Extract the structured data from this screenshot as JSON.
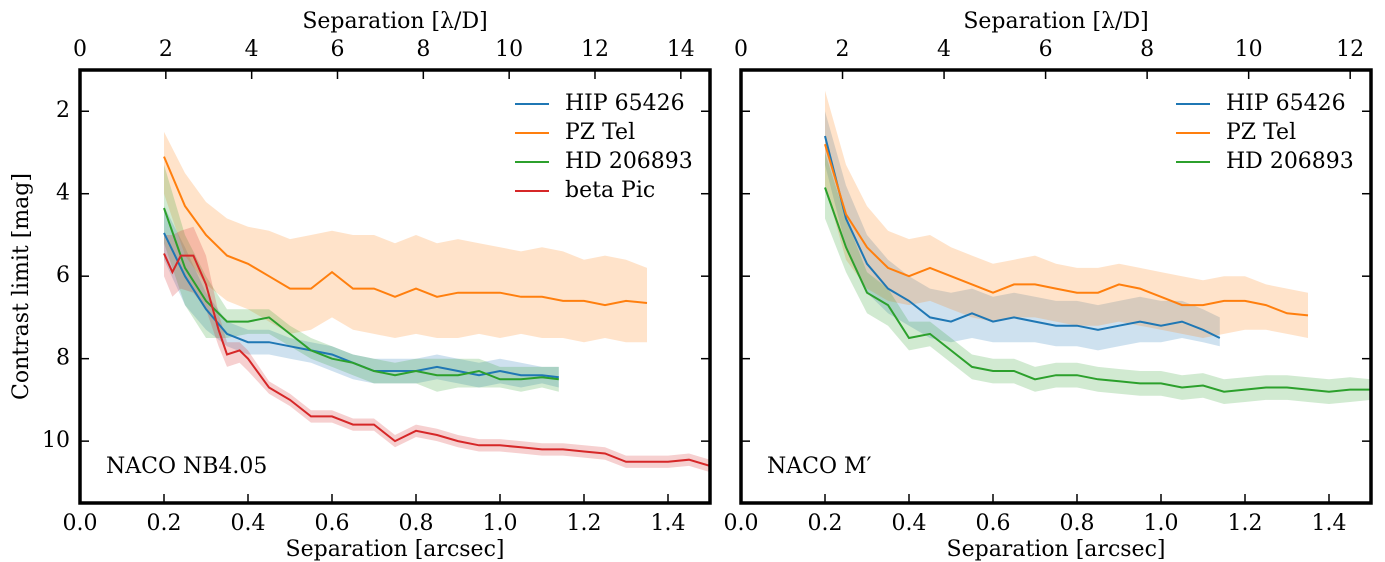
{
  "chart_data": [
    {
      "type": "line",
      "xlabel": "Separation [arcsec]",
      "ylabel": "Contrast limit [mag]",
      "x2label": "Separation [λ/D]",
      "annotation": "NACO NB4.05",
      "xlim": [
        0,
        1.5
      ],
      "xticks": [
        {
          "value": 0,
          "label": "0.0"
        },
        0.2,
        0.4,
        0.6,
        0.8,
        {
          "value": 1,
          "label": "1.0"
        },
        1.2,
        1.4
      ],
      "x2lim": [
        0,
        14.68
      ],
      "x2ticks": [
        0,
        2,
        4,
        6,
        8,
        10,
        12,
        14
      ],
      "ylim": [
        1,
        11.5
      ],
      "y_inverted": true,
      "yticks": [
        2,
        4,
        6,
        8,
        10
      ],
      "ytick_labels": true,
      "legend": "upper right",
      "series": [
        {
          "name": "HIP 65426",
          "color": "#1f77b4",
          "x": [
            0.2,
            0.25,
            0.3,
            0.35,
            0.4,
            0.45,
            0.5,
            0.55,
            0.6,
            0.65,
            0.7,
            0.75,
            0.8,
            0.85,
            0.9,
            0.95,
            1.0,
            1.05,
            1.1,
            1.14
          ],
          "values": [
            4.95,
            6.0,
            6.8,
            7.4,
            7.6,
            7.6,
            7.7,
            7.8,
            7.9,
            8.1,
            8.3,
            8.3,
            8.3,
            8.2,
            8.3,
            8.4,
            8.3,
            8.4,
            8.4,
            8.45
          ],
          "lower": [
            4.3,
            5.3,
            6.4,
            7.1,
            7.3,
            7.3,
            7.5,
            7.6,
            7.7,
            7.9,
            8.0,
            8.0,
            8.0,
            7.9,
            8.0,
            8.1,
            8.0,
            8.1,
            8.2,
            8.2
          ],
          "upper": [
            5.6,
            6.7,
            7.3,
            7.7,
            7.9,
            7.9,
            8.0,
            8.1,
            8.3,
            8.5,
            8.6,
            8.6,
            8.6,
            8.5,
            8.6,
            8.7,
            8.6,
            8.7,
            8.6,
            8.7
          ]
        },
        {
          "name": "PZ Tel",
          "color": "#ff7f0e",
          "x": [
            0.2,
            0.25,
            0.3,
            0.35,
            0.4,
            0.45,
            0.5,
            0.55,
            0.6,
            0.65,
            0.7,
            0.75,
            0.8,
            0.85,
            0.9,
            0.95,
            1.0,
            1.05,
            1.1,
            1.15,
            1.2,
            1.25,
            1.3,
            1.35
          ],
          "values": [
            3.1,
            4.3,
            5.0,
            5.5,
            5.7,
            6.0,
            6.3,
            6.3,
            5.9,
            6.3,
            6.3,
            6.5,
            6.3,
            6.5,
            6.4,
            6.4,
            6.4,
            6.5,
            6.5,
            6.6,
            6.6,
            6.7,
            6.6,
            6.65
          ],
          "lower": [
            2.5,
            3.5,
            4.2,
            4.6,
            4.8,
            4.9,
            5.1,
            5.0,
            4.9,
            5.0,
            5.0,
            5.2,
            5.0,
            5.2,
            5.1,
            5.2,
            5.3,
            5.4,
            5.3,
            5.4,
            5.6,
            5.5,
            5.6,
            5.8
          ],
          "upper": [
            4.0,
            5.5,
            6.2,
            6.6,
            6.8,
            7.1,
            7.4,
            7.3,
            7.0,
            7.3,
            7.4,
            7.5,
            7.4,
            7.5,
            7.5,
            7.4,
            7.5,
            7.4,
            7.5,
            7.5,
            7.6,
            7.5,
            7.6,
            7.6
          ]
        },
        {
          "name": "HD 206893",
          "color": "#2ca02c",
          "x": [
            0.2,
            0.25,
            0.3,
            0.35,
            0.4,
            0.45,
            0.5,
            0.55,
            0.6,
            0.65,
            0.7,
            0.75,
            0.8,
            0.85,
            0.9,
            0.95,
            1.0,
            1.05,
            1.1,
            1.14
          ],
          "values": [
            4.35,
            5.8,
            6.6,
            7.1,
            7.1,
            7.0,
            7.4,
            7.8,
            8.0,
            8.1,
            8.3,
            8.4,
            8.3,
            8.4,
            8.4,
            8.3,
            8.5,
            8.5,
            8.45,
            8.5
          ],
          "lower": [
            3.3,
            5.0,
            6.0,
            6.8,
            6.8,
            6.8,
            7.2,
            7.5,
            7.7,
            7.9,
            8.0,
            8.1,
            8.0,
            8.0,
            8.0,
            8.0,
            8.2,
            8.2,
            8.2,
            8.2
          ],
          "upper": [
            5.2,
            6.7,
            7.5,
            7.5,
            7.4,
            7.4,
            7.7,
            8.0,
            8.2,
            8.4,
            8.6,
            8.6,
            8.6,
            8.8,
            8.7,
            8.7,
            8.7,
            8.8,
            8.7,
            8.8
          ]
        },
        {
          "name": "beta Pic",
          "color": "#d62728",
          "x": [
            0.2,
            0.22,
            0.24,
            0.27,
            0.3,
            0.33,
            0.35,
            0.38,
            0.4,
            0.45,
            0.5,
            0.55,
            0.6,
            0.65,
            0.7,
            0.75,
            0.8,
            0.85,
            0.9,
            0.95,
            1.0,
            1.05,
            1.1,
            1.15,
            1.2,
            1.25,
            1.3,
            1.35,
            1.4,
            1.45,
            1.5
          ],
          "values": [
            5.45,
            5.9,
            5.5,
            5.5,
            6.2,
            7.3,
            7.9,
            7.8,
            8.0,
            8.7,
            9.0,
            9.4,
            9.4,
            9.6,
            9.6,
            10.0,
            9.75,
            9.85,
            10.0,
            10.1,
            10.1,
            10.15,
            10.2,
            10.2,
            10.25,
            10.3,
            10.5,
            10.5,
            10.5,
            10.45,
            10.6
          ],
          "lower": [
            5.0,
            5.0,
            4.9,
            4.8,
            5.5,
            6.9,
            7.6,
            7.6,
            7.8,
            8.55,
            8.85,
            9.25,
            9.25,
            9.45,
            9.45,
            9.85,
            9.6,
            9.7,
            9.85,
            9.95,
            9.95,
            10.0,
            10.05,
            10.05,
            10.1,
            10.15,
            10.35,
            10.35,
            10.35,
            10.3,
            10.45
          ],
          "upper": [
            6.0,
            6.5,
            6.3,
            6.4,
            6.8,
            7.7,
            8.2,
            8.1,
            8.3,
            8.85,
            9.15,
            9.55,
            9.55,
            9.75,
            9.75,
            10.15,
            9.9,
            10.0,
            10.15,
            10.25,
            10.25,
            10.3,
            10.35,
            10.35,
            10.4,
            10.45,
            10.65,
            10.65,
            10.65,
            10.6,
            10.75
          ]
        }
      ]
    },
    {
      "type": "line",
      "xlabel": "Separation [arcsec]",
      "x2label": "Separation [λ/D]",
      "annotation": "NACO M′",
      "xlim": [
        0,
        1.5
      ],
      "xticks": [
        {
          "value": 0,
          "label": "0.0"
        },
        0.2,
        0.4,
        0.6,
        0.8,
        {
          "value": 1,
          "label": "1.0"
        },
        1.2,
        1.4
      ],
      "x2lim": [
        0,
        12.41
      ],
      "x2ticks": [
        0,
        2,
        4,
        6,
        8,
        10,
        12
      ],
      "ylim": [
        1,
        11.5
      ],
      "y_inverted": true,
      "yticks": [
        2,
        4,
        6,
        8,
        10
      ],
      "ytick_labels": false,
      "legend": "upper right",
      "series": [
        {
          "name": "HIP 65426",
          "color": "#1f77b4",
          "x": [
            0.2,
            0.25,
            0.3,
            0.35,
            0.4,
            0.45,
            0.5,
            0.55,
            0.6,
            0.65,
            0.7,
            0.75,
            0.8,
            0.85,
            0.9,
            0.95,
            1.0,
            1.05,
            1.1,
            1.14
          ],
          "values": [
            2.6,
            4.6,
            5.7,
            6.3,
            6.6,
            7.0,
            7.1,
            6.9,
            7.1,
            7.0,
            7.1,
            7.2,
            7.2,
            7.3,
            7.2,
            7.1,
            7.2,
            7.1,
            7.3,
            7.5
          ],
          "lower": [
            2.0,
            3.8,
            5.0,
            5.6,
            6.0,
            6.3,
            6.4,
            6.3,
            6.5,
            6.4,
            6.5,
            6.6,
            6.6,
            6.7,
            6.6,
            6.5,
            6.6,
            6.6,
            6.8,
            7.0
          ],
          "upper": [
            3.3,
            5.3,
            6.4,
            6.9,
            7.2,
            7.5,
            7.6,
            7.5,
            7.6,
            7.6,
            7.6,
            7.7,
            7.7,
            7.8,
            7.7,
            7.6,
            7.6,
            7.5,
            7.6,
            7.7
          ]
        },
        {
          "name": "PZ Tel",
          "color": "#ff7f0e",
          "x": [
            0.2,
            0.25,
            0.3,
            0.35,
            0.4,
            0.45,
            0.5,
            0.55,
            0.6,
            0.65,
            0.7,
            0.75,
            0.8,
            0.85,
            0.9,
            0.95,
            1.0,
            1.05,
            1.1,
            1.15,
            1.2,
            1.25,
            1.3,
            1.35
          ],
          "values": [
            2.8,
            4.5,
            5.3,
            5.8,
            6.0,
            5.8,
            6.0,
            6.2,
            6.4,
            6.2,
            6.2,
            6.3,
            6.4,
            6.4,
            6.2,
            6.3,
            6.5,
            6.7,
            6.7,
            6.6,
            6.6,
            6.7,
            6.9,
            6.95
          ],
          "lower": [
            1.5,
            3.3,
            4.3,
            4.9,
            5.1,
            5.0,
            5.3,
            5.5,
            5.7,
            5.6,
            5.5,
            5.7,
            5.8,
            5.8,
            5.7,
            5.8,
            5.9,
            6.0,
            6.1,
            6.0,
            6.0,
            6.2,
            6.3,
            6.4
          ],
          "upper": [
            3.8,
            5.6,
            6.3,
            6.6,
            6.7,
            6.6,
            6.8,
            7.0,
            7.1,
            7.0,
            7.0,
            7.1,
            7.2,
            7.2,
            7.1,
            7.2,
            7.3,
            7.4,
            7.5,
            7.4,
            7.3,
            7.3,
            7.4,
            7.5
          ]
        },
        {
          "name": "HD 206893",
          "color": "#2ca02c",
          "x": [
            0.2,
            0.25,
            0.3,
            0.35,
            0.4,
            0.45,
            0.5,
            0.55,
            0.6,
            0.65,
            0.7,
            0.75,
            0.8,
            0.85,
            0.9,
            0.95,
            1.0,
            1.05,
            1.1,
            1.15,
            1.2,
            1.25,
            1.3,
            1.35,
            1.4,
            1.45,
            1.5
          ],
          "values": [
            3.85,
            5.3,
            6.4,
            6.7,
            7.5,
            7.4,
            7.8,
            8.2,
            8.3,
            8.3,
            8.5,
            8.4,
            8.4,
            8.5,
            8.55,
            8.6,
            8.6,
            8.7,
            8.65,
            8.8,
            8.75,
            8.7,
            8.7,
            8.75,
            8.8,
            8.75,
            8.75
          ],
          "lower": [
            3.0,
            4.6,
            5.9,
            6.3,
            7.1,
            7.1,
            7.5,
            7.9,
            8.0,
            8.0,
            8.2,
            8.1,
            8.1,
            8.2,
            8.25,
            8.3,
            8.3,
            8.4,
            8.35,
            8.5,
            8.45,
            8.4,
            8.4,
            8.45,
            8.5,
            8.45,
            8.5
          ],
          "upper": [
            4.6,
            5.9,
            6.9,
            7.2,
            7.8,
            7.7,
            8.1,
            8.5,
            8.6,
            8.6,
            8.8,
            8.7,
            8.7,
            8.8,
            8.85,
            8.9,
            8.9,
            9.0,
            8.95,
            9.1,
            9.05,
            9.0,
            9.0,
            9.05,
            9.1,
            9.05,
            9.0
          ]
        }
      ]
    }
  ]
}
